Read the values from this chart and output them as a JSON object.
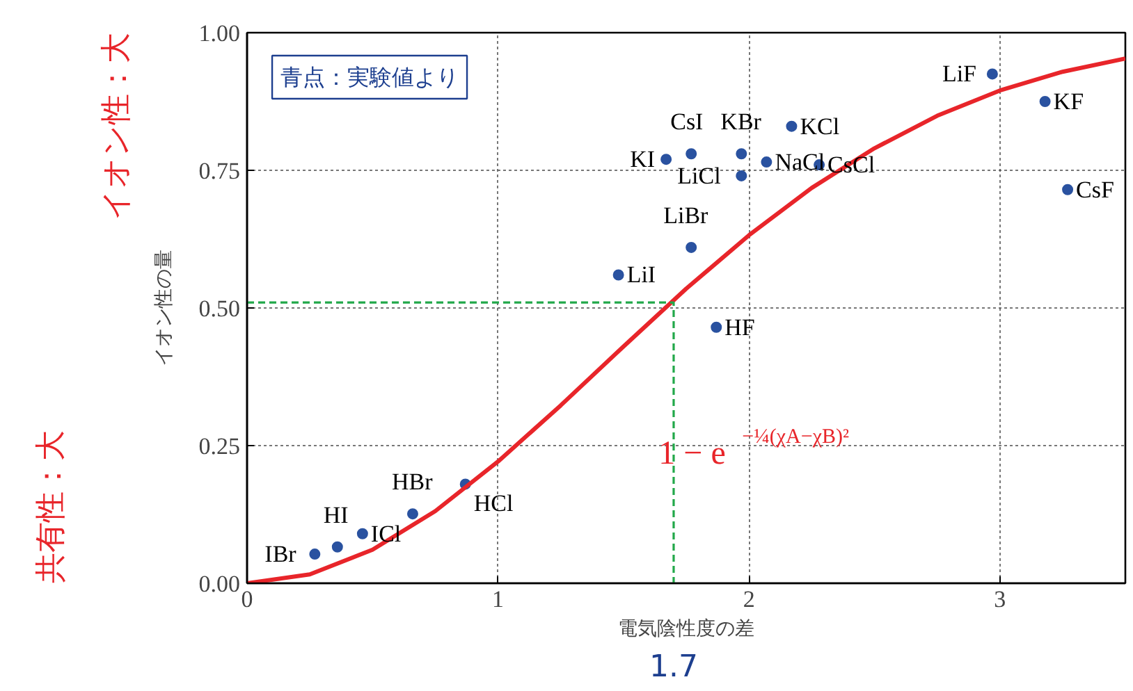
{
  "chart_data": {
    "type": "scatter",
    "xlabel": "電気陰性度の差",
    "ylabel": "イオン性の量",
    "xlim": [
      0,
      3.5
    ],
    "ylim": [
      0,
      1
    ],
    "xticks": [
      0,
      1,
      2,
      3
    ],
    "yticks": [
      {
        "value": 0,
        "label": "0.00"
      },
      {
        "value": 0.25,
        "label": "0.25"
      },
      {
        "value": 0.5,
        "label": "0.50"
      },
      {
        "value": 0.75,
        "label": "0.75"
      },
      {
        "value": 1,
        "label": "1.00"
      }
    ],
    "grid": true,
    "series": [
      {
        "marker": "circle",
        "color": "#2a52a0",
        "x": [
          0.27,
          0.36,
          0.46,
          0.66,
          0.87,
          1.48,
          1.77,
          1.87,
          1.67,
          1.77,
          1.97,
          1.97,
          2.07,
          2.17,
          2.28,
          2.97,
          3.18,
          3.27
        ],
        "values": [
          0.053,
          0.066,
          0.09,
          0.126,
          0.18,
          0.56,
          0.61,
          0.465,
          0.77,
          0.78,
          0.78,
          0.74,
          0.765,
          0.83,
          0.76,
          0.925,
          0.875,
          0.715
        ]
      },
      {
        "type": "line",
        "color": "#e8252a",
        "line_style": "solid",
        "x": [
          0,
          0.25,
          0.5,
          0.75,
          1,
          1.25,
          1.5,
          1.75,
          2,
          2.25,
          2.5,
          2.75,
          3,
          3.25,
          3.5
        ],
        "values": [
          0,
          0.016,
          0.061,
          0.131,
          0.221,
          0.323,
          0.43,
          0.535,
          0.632,
          0.718,
          0.79,
          0.849,
          0.895,
          0.929,
          0.953
        ]
      },
      {
        "type": "line",
        "color": "#22a84a",
        "line_style": "dashed",
        "x": [
          0,
          1.7,
          1.7
        ],
        "values": [
          0.51,
          0.51,
          0
        ]
      }
    ],
    "annotations": [
      "青点：実験値より",
      "イオン性：大",
      "共有性：大",
      "1 − e$^{−¼(χA−χB)²}$",
      {
        "text": "1.7",
        "x": 1.7,
        "y": 0
      },
      {
        "text": "IBr",
        "x": 0.27,
        "y": 0.053
      },
      {
        "text": "HI",
        "x": 0.36,
        "y": 0.066
      },
      {
        "text": "ICl",
        "x": 0.46,
        "y": 0.09
      },
      {
        "text": "HBr",
        "x": 0.66,
        "y": 0.126
      },
      {
        "text": "HCl",
        "x": 0.87,
        "y": 0.18
      },
      {
        "text": "LiI",
        "x": 1.48,
        "y": 0.56
      },
      {
        "text": "LiBr",
        "x": 1.77,
        "y": 0.61
      },
      {
        "text": "HF",
        "x": 1.87,
        "y": 0.465
      },
      {
        "text": "KI",
        "x": 1.67,
        "y": 0.77
      },
      {
        "text": "CsI",
        "x": 1.77,
        "y": 0.78
      },
      {
        "text": "KBr",
        "x": 1.97,
        "y": 0.78
      },
      {
        "text": "LiCl",
        "x": 1.97,
        "y": 0.74
      },
      {
        "text": "NaCl",
        "x": 2.07,
        "y": 0.765
      },
      {
        "text": "KCl",
        "x": 2.17,
        "y": 0.83
      },
      {
        "text": "CsCl",
        "x": 2.28,
        "y": 0.76
      },
      {
        "text": "LiF",
        "x": 2.97,
        "y": 0.925
      },
      {
        "text": "KF",
        "x": 3.18,
        "y": 0.875
      },
      {
        "text": "CsF",
        "x": 3.27,
        "y": 0.715
      }
    ]
  }
}
